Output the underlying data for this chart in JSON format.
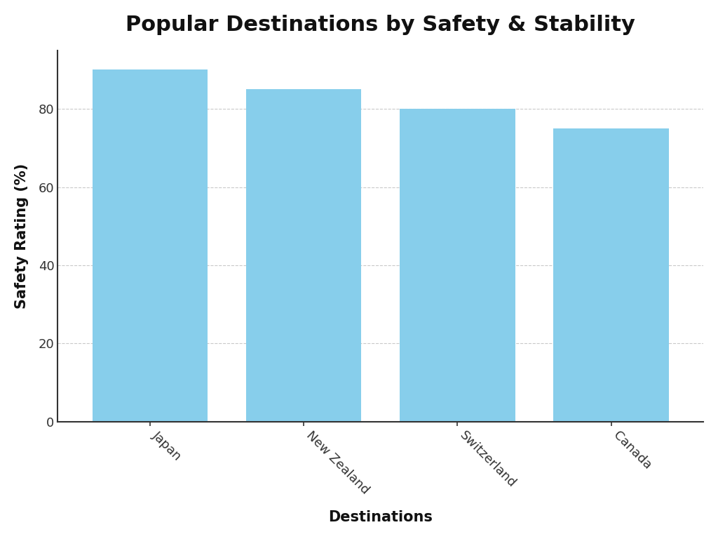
{
  "categories": [
    "Japan",
    "New Zealand",
    "Switzerland",
    "Canada"
  ],
  "values": [
    90,
    85,
    80,
    75
  ],
  "bar_color": "#87CEEB",
  "bar_edgecolor": "none",
  "title": "Popular Destinations by Safety & Stability",
  "xlabel": "Destinations",
  "ylabel": "Safety Rating (%)",
  "ylim": [
    0,
    95
  ],
  "yticks": [
    0,
    20,
    40,
    60,
    80
  ],
  "grid_color": "#bbbbbb",
  "grid_linestyle": "--",
  "grid_alpha": 0.8,
  "title_fontsize": 22,
  "label_fontsize": 15,
  "tick_fontsize": 13,
  "background_color": "#ffffff",
  "bar_width": 0.75,
  "xtick_rotation": -45
}
